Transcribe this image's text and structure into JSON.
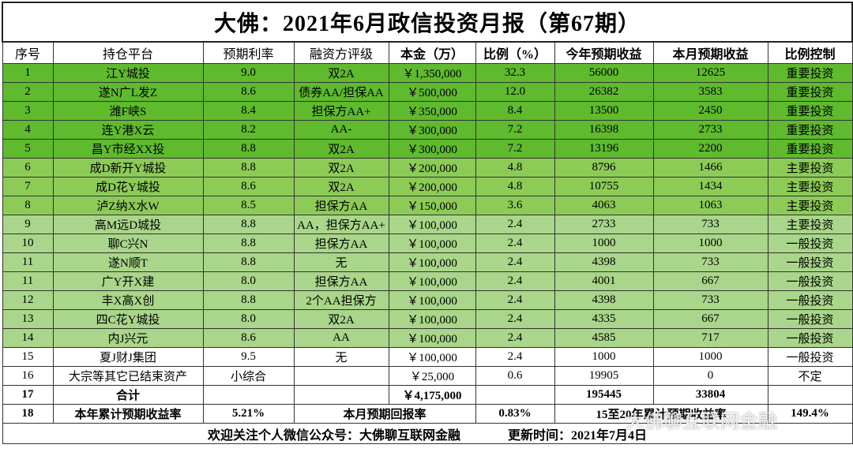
{
  "header": {
    "title": "大佛：2021年6月政信投资月报（第67期）"
  },
  "table": {
    "columns": [
      "序号",
      "持仓平台",
      "预期利率",
      "融资方评级",
      "本金（万）",
      "比例（%）",
      "今年预期收益",
      "本月预期收益",
      "比例控制"
    ],
    "rows": [
      [
        "1",
        "江Y城投",
        "9.0",
        "双2A",
        "￥1,350,000",
        "32.3",
        "56000",
        "12625",
        "重要投资"
      ],
      [
        "2",
        "遂N广L发Z",
        "8.6",
        "债券AA/担保AA",
        "￥500,000",
        "12.0",
        "26382",
        "3583",
        "重要投资"
      ],
      [
        "3",
        "潍F峡S",
        "8.4",
        "担保方AA+",
        "￥350,000",
        "8.4",
        "13500",
        "2450",
        "重要投资"
      ],
      [
        "4",
        "连Y港X云",
        "8.2",
        "AA-",
        "￥300,000",
        "7.2",
        "16398",
        "2733",
        "重要投资"
      ],
      [
        "5",
        "昌Y市经XX投",
        "8.8",
        "双2A",
        "￥300,000",
        "7.2",
        "13196",
        "2200",
        "重要投资"
      ],
      [
        "6",
        "成D新开Y城投",
        "8.8",
        "双2A",
        "￥200,000",
        "4.8",
        "8796",
        "1466",
        "主要投资"
      ],
      [
        "7",
        "成D花Y城投",
        "8.6",
        "双2A",
        "￥200,000",
        "4.8",
        "10755",
        "1434",
        "主要投资"
      ],
      [
        "8",
        "泸Z纳X水W",
        "8.5",
        "担保方AA",
        "￥150,000",
        "3.6",
        "4063",
        "1063",
        "主要投资"
      ],
      [
        "9",
        "高M远D城投",
        "8.8",
        "AA，担保方AA+",
        "￥100,000",
        "2.4",
        "2733",
        "733",
        "主要投资"
      ],
      [
        "10",
        "聊C兴N",
        "8.8",
        "担保方AA",
        "￥100,000",
        "2.4",
        "1000",
        "1000",
        "一般投资"
      ],
      [
        "11",
        "遂N顺T",
        "8.8",
        "无",
        "￥100,000",
        "2.4",
        "4398",
        "733",
        "一般投资"
      ],
      [
        "11",
        "广Y开X建",
        "8.0",
        "担保方AA",
        "￥100,000",
        "2.4",
        "4001",
        "667",
        "一般投资"
      ],
      [
        "12",
        "丰X高X创",
        "8.8",
        "2个AA担保方",
        "￥100,000",
        "2.4",
        "4398",
        "733",
        "一般投资"
      ],
      [
        "13",
        "四C花Y城投",
        "8.0",
        "双2A",
        "￥100,000",
        "2.4",
        "4335",
        "667",
        "一般投资"
      ],
      [
        "14",
        "内J兴元",
        "8.6",
        "AA",
        "￥100,000",
        "2.4",
        "4585",
        "717",
        "一般投资"
      ],
      [
        "15",
        "夏J财J集团",
        "9.5",
        "无",
        "￥100,000",
        "2.4",
        "1000",
        "1000",
        "一般投资"
      ],
      [
        "16",
        "大宗等其它已结束资产",
        "小综合",
        null,
        "￥25,000",
        "0.6",
        "19905",
        "0",
        "不定"
      ],
      [
        "17",
        "合计",
        null,
        null,
        "￥4,175,000",
        null,
        "195445",
        "33804",
        null
      ]
    ],
    "summary": [
      "18",
      "本年累计预期收益率",
      "5.21%",
      "本月预期回报率",
      "0.83%",
      "15至20年累计预期收益率",
      "149.4%"
    ]
  },
  "footer": {
    "note": "欢迎关注个人微信公众号：大佛聊互联网金融",
    "updated": "更新时间：2021年7月4日"
  },
  "watermark": "大佛聊互联网金融"
}
